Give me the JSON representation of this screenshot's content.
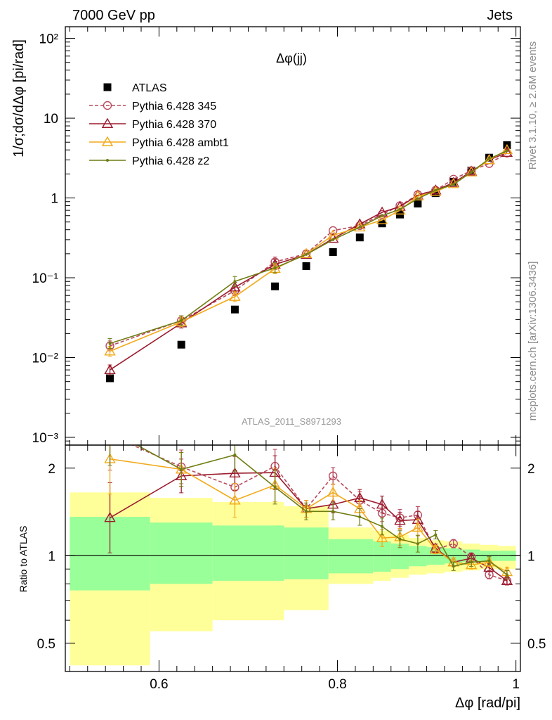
{
  "header": {
    "energy_label": "7000 GeV pp",
    "process_label": "Jets",
    "plot_title": "Δφ(jj)",
    "analysis_label": "ATLAS_2011_S8971293"
  },
  "side_labels": {
    "generator_label": "Rivet 3.1.10, ≥ 2.6M events",
    "source_label": "mcplots.cern.ch [arXiv:1306.3436]"
  },
  "colors": {
    "data": "#000000",
    "pythia_345": "#b94a5e",
    "pythia_370": "#9b1b2d",
    "pythia_ambt1": "#f2a91a",
    "pythia_z2": "#6f7d12",
    "band_inner": "#99ff99",
    "band_outer": "#ffff99"
  },
  "chart_data": [
    {
      "type": "scatter",
      "panel": "main",
      "ylabel": "1/σ;dσ/dΔφ [pi/rad]",
      "yscale": "log",
      "ylim": [
        0.0008,
        140
      ],
      "xlim": [
        0.495,
        1.005
      ],
      "ytick_labels": [
        "10⁻³",
        "10⁻²",
        "10⁻¹",
        "1",
        "10",
        "10²"
      ],
      "legend_placement": "top-left",
      "x": [
        0.545,
        0.625,
        0.685,
        0.73,
        0.765,
        0.795,
        0.825,
        0.85,
        0.87,
        0.89,
        0.91,
        0.93,
        0.95,
        0.97,
        0.99
      ],
      "series": [
        {
          "name": "ATLAS",
          "key": "data",
          "style": "square",
          "values": [
            0.0055,
            0.0145,
            0.04,
            0.078,
            0.14,
            0.21,
            0.32,
            0.48,
            0.62,
            0.85,
            1.15,
            1.6,
            2.2,
            3.2,
            4.6
          ]
        },
        {
          "name": "Pythia 6.428 345",
          "key": "pythia_345",
          "style": "circle-dashed",
          "values": [
            0.014,
            0.029,
            0.069,
            0.158,
            0.2,
            0.39,
            0.45,
            0.62,
            0.8,
            1.1,
            1.25,
            1.72,
            2.2,
            2.7,
            3.65
          ]
        },
        {
          "name": "Pythia 6.428 370",
          "key": "pythia_370",
          "style": "triangle",
          "values": [
            0.007,
            0.027,
            0.076,
            0.147,
            0.195,
            0.31,
            0.47,
            0.66,
            0.78,
            1.08,
            1.25,
            1.55,
            2.15,
            3.0,
            3.7
          ]
        },
        {
          "name": "Pythia 6.428 ambt1",
          "key": "pythia_ambt1",
          "style": "triangle",
          "values": [
            0.012,
            0.028,
            0.058,
            0.13,
            0.2,
            0.34,
            0.43,
            0.53,
            0.7,
            1.05,
            1.2,
            1.5,
            2.1,
            3.0,
            4.0
          ]
        },
        {
          "name": "Pythia 6.428 z2",
          "key": "pythia_z2",
          "style": "dot",
          "values": [
            0.015,
            0.029,
            0.09,
            0.133,
            0.196,
            0.3,
            0.43,
            0.6,
            0.72,
            0.98,
            1.25,
            1.48,
            2.1,
            3.1,
            3.9
          ]
        }
      ]
    },
    {
      "type": "line",
      "panel": "ratio",
      "xlabel": "Δφ [rad/pi]",
      "ylabel": "Ratio to ATLAS",
      "yscale": "log",
      "ylim": [
        0.4,
        2.4
      ],
      "xlim": [
        0.495,
        1.005
      ],
      "x_ticks": [
        0.6,
        0.8,
        1
      ],
      "x_tick_labels": [
        "0.6",
        "0.8",
        "1"
      ],
      "y_ticks": [
        0.5,
        1,
        2
      ],
      "y_tick_labels": [
        "0.5",
        "1",
        "2"
      ],
      "bands": {
        "edges": [
          0.5,
          0.59,
          0.66,
          0.74,
          0.79,
          0.84,
          0.86,
          0.88,
          0.9,
          0.92,
          0.94,
          0.96,
          0.98,
          1.0
        ],
        "inner_low": [
          0.76,
          0.8,
          0.82,
          0.83,
          0.87,
          0.88,
          0.9,
          0.92,
          0.93,
          0.94,
          0.95,
          0.96,
          0.96
        ],
        "inner_high": [
          1.36,
          1.3,
          1.27,
          1.25,
          1.14,
          1.12,
          1.1,
          1.08,
          1.07,
          1.06,
          1.05,
          1.04,
          1.04
        ],
        "outer_low": [
          0.42,
          0.55,
          0.6,
          0.65,
          0.8,
          0.82,
          0.84,
          0.86,
          0.87,
          0.88,
          0.89,
          0.9,
          0.9
        ],
        "outer_high": [
          1.65,
          1.58,
          1.53,
          1.48,
          1.25,
          1.22,
          1.18,
          1.15,
          1.13,
          1.12,
          1.1,
          1.09,
          1.08
        ]
      },
      "x": [
        0.545,
        0.625,
        0.685,
        0.73,
        0.765,
        0.795,
        0.825,
        0.85,
        0.87,
        0.89,
        0.91,
        0.93,
        0.95,
        0.97,
        0.99
      ],
      "series": [
        {
          "name": "Pythia 6.428 345",
          "key": "pythia_345",
          "style": "circle-dashed",
          "values": [
            2.6,
            2.02,
            1.72,
            2.03,
            1.45,
            1.88,
            1.55,
            1.4,
            1.35,
            1.38,
            1.05,
            1.1,
            0.99,
            0.86,
            0.82
          ]
        },
        {
          "name": "Pythia 6.428 370",
          "key": "pythia_370",
          "style": "triangle",
          "values": [
            1.35,
            1.88,
            1.92,
            1.93,
            1.45,
            1.5,
            1.58,
            1.5,
            1.32,
            1.33,
            1.06,
            0.95,
            0.98,
            0.91,
            0.82
          ]
        },
        {
          "name": "Pythia 6.428 ambt1",
          "key": "pythia_ambt1",
          "style": "triangle",
          "values": [
            2.15,
            1.98,
            1.55,
            1.75,
            1.45,
            1.65,
            1.45,
            1.15,
            1.16,
            1.25,
            1.05,
            0.95,
            0.93,
            0.95,
            0.88
          ]
        },
        {
          "name": "Pythia 6.428 z2",
          "key": "pythia_z2",
          "style": "dot",
          "values": [
            2.7,
            1.98,
            2.22,
            1.72,
            1.42,
            1.42,
            1.36,
            1.26,
            1.14,
            1.1,
            1.18,
            0.92,
            0.95,
            0.96,
            0.86
          ]
        }
      ]
    }
  ]
}
